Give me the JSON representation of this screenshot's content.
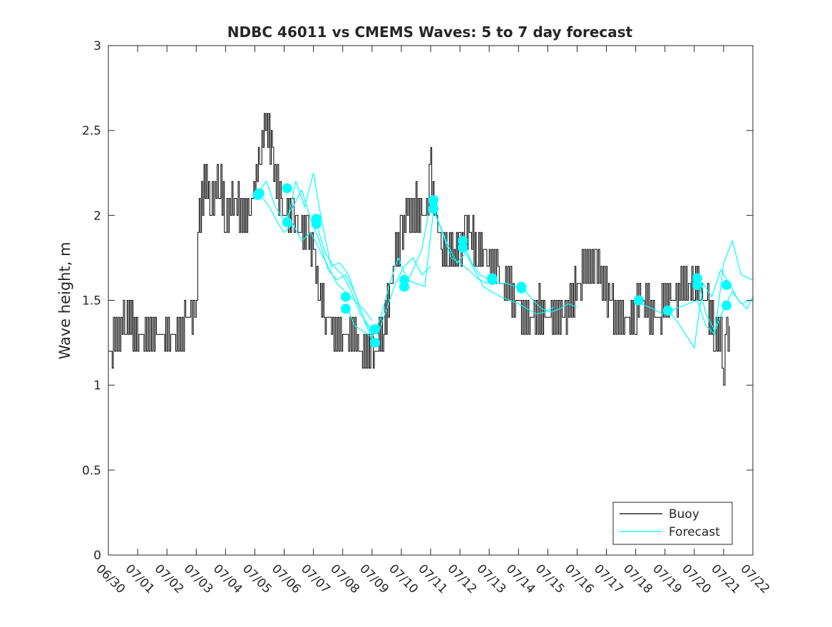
{
  "chart_data": {
    "type": "line",
    "title": "NDBC 46011 vs CMEMS Waves: 5 to 7 day forecast",
    "xlabel": "",
    "ylabel": "Wave height, m",
    "xlim": [
      0,
      22
    ],
    "ylim": [
      0,
      3
    ],
    "x_tick_labels": [
      "06/30",
      "07/01",
      "07/02",
      "07/03",
      "07/04",
      "07/05",
      "07/06",
      "07/07",
      "07/08",
      "07/09",
      "07/10",
      "07/11",
      "07/12",
      "07/13",
      "07/14",
      "07/15",
      "07/16",
      "07/17",
      "07/18",
      "07/19",
      "07/20",
      "07/21",
      "07/22"
    ],
    "y_ticks": [
      0,
      0.5,
      1,
      1.5,
      2,
      2.5,
      3
    ],
    "y_tick_labels": [
      "0",
      "0.5",
      "1",
      "1.5",
      "2",
      "2.5",
      "3"
    ],
    "grid": false,
    "legend": {
      "location": "bottom-right",
      "entries": [
        {
          "label": "Buoy",
          "color": "#000000"
        },
        {
          "label": "Forecast",
          "color": "#00ffff"
        }
      ]
    },
    "colors": {
      "buoy": "#000000",
      "forecast": "#00ffff"
    },
    "buoy": {
      "x_days": [
        0,
        0.3,
        0.6,
        1,
        1.3,
        1.6,
        2,
        2.3,
        2.6,
        2.9,
        3.0,
        3.1,
        3.3,
        3.5,
        3.8,
        4.0,
        4.3,
        4.6,
        4.8,
        5.0,
        5.2,
        5.4,
        5.6,
        5.9,
        6.1,
        6.3,
        6.6,
        6.8,
        7.0,
        7.2,
        7.4,
        7.7,
        8.0,
        8.2,
        8.5,
        8.8,
        9.0,
        9.2,
        9.4,
        9.6,
        9.8,
        10.0,
        10.2,
        10.5,
        10.7,
        10.9,
        11.0,
        11.2,
        11.4,
        11.6,
        11.8,
        12.0,
        12.2,
        12.4,
        12.6,
        12.8,
        13.0,
        13.3,
        13.6,
        13.9,
        14.1,
        14.4,
        14.7,
        14.9,
        15.2,
        15.5,
        15.8,
        16.0,
        16.3,
        16.6,
        16.9,
        17.2,
        17.5,
        17.8,
        18.0,
        18.3,
        18.6,
        18.9,
        19.2,
        19.5,
        19.8,
        20.0,
        20.2,
        20.5,
        20.7,
        20.9,
        21.0,
        21.1,
        21.2
      ],
      "values": [
        1.2,
        1.3,
        1.4,
        1.3,
        1.3,
        1.35,
        1.3,
        1.3,
        1.35,
        1.4,
        1.6,
        2.0,
        2.2,
        2.1,
        2.2,
        2.0,
        2.1,
        2.0,
        1.95,
        2.2,
        2.4,
        2.6,
        2.3,
        2.05,
        1.95,
        2.0,
        1.9,
        1.9,
        1.75,
        1.55,
        1.45,
        1.3,
        1.25,
        1.3,
        1.25,
        1.2,
        1.2,
        1.25,
        1.35,
        1.55,
        1.75,
        1.9,
        2.0,
        2.05,
        1.95,
        2.1,
        2.25,
        1.95,
        1.8,
        1.75,
        1.75,
        1.8,
        1.9,
        1.9,
        1.75,
        1.8,
        1.7,
        1.65,
        1.6,
        1.5,
        1.45,
        1.4,
        1.45,
        1.35,
        1.4,
        1.35,
        1.5,
        1.6,
        1.7,
        1.75,
        1.6,
        1.45,
        1.4,
        1.35,
        1.45,
        1.5,
        1.4,
        1.45,
        1.5,
        1.55,
        1.6,
        1.55,
        1.55,
        1.45,
        1.3,
        1.25,
        1.1,
        1.25,
        1.35
      ]
    },
    "forecast_series": [
      {
        "x_days": [
          5.2,
          5.5,
          5.8,
          6.0,
          6.3,
          6.6,
          6.9,
          7.2,
          7.5,
          7.8,
          8.1,
          8.4,
          8.7,
          9.0
        ],
        "values": [
          2.12,
          2.05,
          1.95,
          1.9,
          1.95,
          1.85,
          1.9,
          1.8,
          1.7,
          1.6,
          1.55,
          1.5,
          1.45,
          1.38
        ]
      },
      {
        "x_days": [
          5.1,
          5.4,
          5.7,
          6.0,
          6.3,
          6.6,
          6.9,
          7.2,
          7.5,
          7.8,
          8.1,
          8.4,
          8.7,
          9.0
        ],
        "values": [
          2.14,
          2.2,
          2.05,
          1.97,
          2.05,
          2.15,
          1.98,
          1.85,
          1.68,
          1.62,
          1.65,
          1.55,
          1.4,
          1.3
        ]
      },
      {
        "x_days": [
          6.1,
          6.4,
          6.7,
          7.0,
          7.3,
          7.6,
          7.9,
          8.2,
          8.5,
          8.8,
          9.1
        ],
        "values": [
          1.96,
          2.2,
          2.05,
          2.25,
          1.95,
          1.7,
          1.72,
          1.65,
          1.5,
          1.35,
          1.25
        ]
      },
      {
        "x_days": [
          7.1,
          7.4,
          7.7,
          8.0,
          8.3,
          8.6,
          8.9,
          9.2,
          9.5,
          9.8,
          10.1,
          10.4,
          10.7,
          11.0
        ],
        "values": [
          1.95,
          1.78,
          1.7,
          1.65,
          1.55,
          1.42,
          1.35,
          1.3,
          1.45,
          1.6,
          1.7,
          1.75,
          1.65,
          1.7
        ]
      },
      {
        "x_days": [
          8.1,
          8.4,
          8.7,
          9.0,
          9.3,
          9.6,
          9.9,
          10.2,
          10.5,
          10.8,
          11.1,
          11.4,
          11.7,
          12.0,
          12.3,
          12.6,
          12.9,
          13.2
        ],
        "values": [
          1.48,
          1.35,
          1.32,
          1.28,
          1.4,
          1.6,
          1.75,
          1.62,
          1.6,
          1.58,
          2.03,
          1.9,
          1.75,
          1.72,
          1.68,
          1.63,
          1.6,
          1.62
        ]
      },
      {
        "x_days": [
          10.1,
          10.4,
          10.7,
          11.0,
          11.3,
          11.6,
          11.9,
          12.2,
          12.5,
          12.8,
          13.1,
          13.4,
          13.7,
          14.0,
          14.3,
          14.6,
          14.9,
          15.2
        ],
        "values": [
          1.57,
          1.68,
          1.8,
          2.08,
          1.95,
          1.82,
          1.72,
          1.78,
          1.68,
          1.58,
          1.55,
          1.52,
          1.5,
          1.48,
          1.45,
          1.42,
          1.43,
          1.46
        ]
      },
      {
        "x_days": [
          12.1,
          12.4,
          12.7,
          13.0,
          13.3,
          13.6,
          13.9,
          14.2,
          14.5,
          14.8,
          15.1,
          15.4,
          15.7,
          16.0
        ],
        "values": [
          1.85,
          1.72,
          1.65,
          1.62,
          1.6,
          1.6,
          1.58,
          1.56,
          1.5,
          1.45,
          1.43,
          1.45,
          1.48,
          1.46
        ]
      },
      {
        "x_days": [
          18.0,
          18.3,
          18.6,
          18.9,
          19.2,
          19.5,
          19.8,
          20.1,
          20.4,
          20.7,
          21.0,
          21.3,
          21.6,
          22.0
        ],
        "values": [
          1.5,
          1.47,
          1.45,
          1.42,
          1.44,
          1.46,
          1.48,
          1.5,
          1.35,
          1.3,
          1.72,
          1.85,
          1.65,
          1.62
        ]
      },
      {
        "x_days": [
          19.1,
          19.4,
          19.7,
          20.0,
          20.3,
          20.6,
          20.9,
          21.2,
          21.5,
          21.8,
          22.0
        ],
        "values": [
          1.44,
          1.38,
          1.3,
          1.22,
          1.6,
          1.52,
          1.68,
          1.6,
          1.5,
          1.45,
          1.52
        ]
      },
      {
        "x_days": [
          20.1,
          20.4,
          20.7,
          21.0,
          21.3,
          21.6,
          21.9
        ],
        "values": [
          1.63,
          1.42,
          1.32,
          1.45,
          1.55,
          1.48,
          1.5
        ]
      }
    ],
    "forecast_markers": [
      {
        "x": 5.1,
        "y": 2.12
      },
      {
        "x": 5.15,
        "y": 2.13
      },
      {
        "x": 6.1,
        "y": 2.16
      },
      {
        "x": 6.1,
        "y": 1.96
      },
      {
        "x": 7.1,
        "y": 1.98
      },
      {
        "x": 7.1,
        "y": 1.95
      },
      {
        "x": 8.1,
        "y": 1.52
      },
      {
        "x": 8.1,
        "y": 1.45
      },
      {
        "x": 9.1,
        "y": 1.33
      },
      {
        "x": 9.1,
        "y": 1.25
      },
      {
        "x": 10.1,
        "y": 1.62
      },
      {
        "x": 10.1,
        "y": 1.58
      },
      {
        "x": 11.1,
        "y": 2.09
      },
      {
        "x": 11.1,
        "y": 2.04
      },
      {
        "x": 12.1,
        "y": 1.85
      },
      {
        "x": 12.1,
        "y": 1.81
      },
      {
        "x": 13.1,
        "y": 1.63
      },
      {
        "x": 13.1,
        "y": 1.62
      },
      {
        "x": 14.1,
        "y": 1.58
      },
      {
        "x": 14.1,
        "y": 1.57
      },
      {
        "x": 18.1,
        "y": 1.5
      },
      {
        "x": 19.1,
        "y": 1.44
      },
      {
        "x": 20.1,
        "y": 1.63
      },
      {
        "x": 20.1,
        "y": 1.59
      },
      {
        "x": 21.1,
        "y": 1.59
      },
      {
        "x": 21.1,
        "y": 1.47
      }
    ]
  }
}
